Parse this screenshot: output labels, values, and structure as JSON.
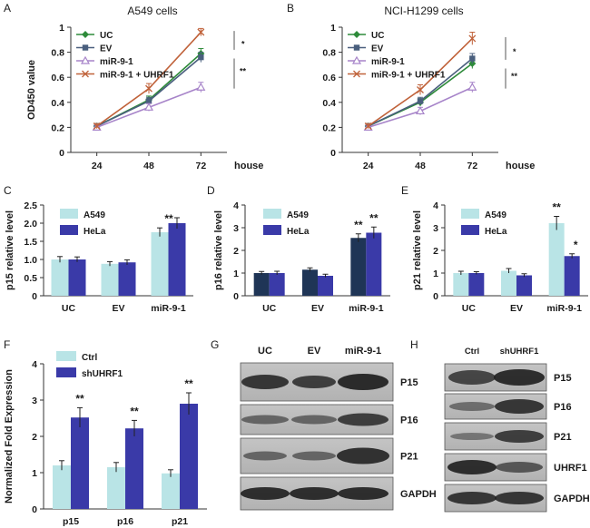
{
  "colors": {
    "uc": "#2e8b3a",
    "ev": "#4a5f7e",
    "mir": "#a784c9",
    "mir_uhrf1": "#c0623a",
    "light": "#b9e4e6",
    "dark": "#3a3aa8",
    "navy": "#1f3556"
  },
  "panels": {
    "A": {
      "letter": "A"
    },
    "B": {
      "letter": "B"
    },
    "C": {
      "letter": "C"
    },
    "D": {
      "letter": "D"
    },
    "E": {
      "letter": "E"
    },
    "F": {
      "letter": "F"
    },
    "G": {
      "letter": "G"
    },
    "H": {
      "letter": "H"
    }
  },
  "chart_data": [
    {
      "id": "A",
      "type": "line",
      "title": "A549 cells",
      "ylabel": "OD450 value",
      "xlabel": "house",
      "x": [
        "24",
        "48",
        "72"
      ],
      "ylim": [
        0,
        1
      ],
      "yticks": [
        "0",
        "0.2",
        "0.4",
        "0.6",
        "0.8",
        "1"
      ],
      "series": [
        {
          "name": "UC",
          "values": [
            0.21,
            0.42,
            0.79
          ],
          "errors": [
            0.02,
            0.03,
            0.04
          ]
        },
        {
          "name": "EV",
          "values": [
            0.21,
            0.41,
            0.76
          ],
          "errors": [
            0.02,
            0.03,
            0.04
          ]
        },
        {
          "name": "miR-9-1",
          "values": [
            0.2,
            0.36,
            0.52
          ],
          "errors": [
            0.02,
            0.03,
            0.04
          ]
        },
        {
          "name": "miR-9-1 + UHRF1",
          "values": [
            0.21,
            0.51,
            0.96
          ],
          "errors": [
            0.02,
            0.04,
            0.03
          ]
        }
      ],
      "significance": [
        "*",
        "**"
      ]
    },
    {
      "id": "B",
      "type": "line",
      "title": "NCI-H1299 cells",
      "ylabel": "",
      "xlabel": "house",
      "x": [
        "24",
        "48",
        "72"
      ],
      "ylim": [
        0,
        1
      ],
      "yticks": [
        "0",
        "0.2",
        "0.4",
        "0.6",
        "0.8",
        "1"
      ],
      "series": [
        {
          "name": "UC",
          "values": [
            0.21,
            0.4,
            0.71
          ],
          "errors": [
            0.02,
            0.03,
            0.04
          ]
        },
        {
          "name": "EV",
          "values": [
            0.21,
            0.41,
            0.75
          ],
          "errors": [
            0.02,
            0.03,
            0.04
          ]
        },
        {
          "name": "miR-9-1",
          "values": [
            0.2,
            0.33,
            0.52
          ],
          "errors": [
            0.02,
            0.03,
            0.04
          ]
        },
        {
          "name": "miR-9-1 + UHRF1",
          "values": [
            0.21,
            0.5,
            0.91
          ],
          "errors": [
            0.02,
            0.04,
            0.05
          ]
        }
      ],
      "significance": [
        "*",
        "**"
      ]
    },
    {
      "id": "C",
      "type": "bar",
      "ylabel": "p15 relative level",
      "categories": [
        "UC",
        "EV",
        "miR-9-1"
      ],
      "ylim": [
        0,
        2.5
      ],
      "yticks": [
        "0",
        "0.5",
        "1.0",
        "1.5",
        "2.0",
        "2.5"
      ],
      "series": [
        {
          "name": "A549",
          "values": [
            1.0,
            0.88,
            1.75
          ],
          "errors": [
            0.08,
            0.06,
            0.12
          ]
        },
        {
          "name": "HeLa",
          "values": [
            1.0,
            0.92,
            2.0
          ],
          "errors": [
            0.07,
            0.07,
            0.15
          ]
        }
      ],
      "significance": [
        "**"
      ]
    },
    {
      "id": "D",
      "type": "bar",
      "ylabel": "p16 relative level",
      "categories": [
        "UC",
        "EV",
        "miR-9-1"
      ],
      "ylim": [
        0,
        4
      ],
      "yticks": [
        "0",
        "1",
        "2",
        "3",
        "4"
      ],
      "series": [
        {
          "name": "A549",
          "values": [
            1.0,
            1.15,
            2.55
          ],
          "errors": [
            0.07,
            0.08,
            0.18
          ]
        },
        {
          "name": "HeLa",
          "values": [
            1.0,
            0.88,
            2.78
          ],
          "errors": [
            0.08,
            0.07,
            0.25
          ]
        }
      ],
      "significance": [
        "**",
        "**"
      ]
    },
    {
      "id": "E",
      "type": "bar",
      "ylabel": "p21 relative level",
      "categories": [
        "UC",
        "EV",
        "miR-9-1"
      ],
      "ylim": [
        0,
        4
      ],
      "yticks": [
        "0",
        "1",
        "2",
        "3",
        "4"
      ],
      "series": [
        {
          "name": "A549",
          "values": [
            1.0,
            1.1,
            3.2
          ],
          "errors": [
            0.08,
            0.1,
            0.3
          ]
        },
        {
          "name": "HeLa",
          "values": [
            1.0,
            0.9,
            1.75
          ],
          "errors": [
            0.06,
            0.07,
            0.1
          ]
        }
      ],
      "significance": [
        "**",
        "*"
      ]
    },
    {
      "id": "F",
      "type": "bar",
      "ylabel": "Normalized Fold Expression",
      "categories": [
        "p15",
        "p16",
        "p21"
      ],
      "ylim": [
        0,
        4
      ],
      "yticks": [
        "0",
        "1",
        "2",
        "3",
        "4"
      ],
      "series": [
        {
          "name": "Ctrl",
          "values": [
            1.2,
            1.15,
            0.98
          ],
          "errors": [
            0.13,
            0.13,
            0.1
          ]
        },
        {
          "name": "shUHRF1",
          "values": [
            2.52,
            2.22,
            2.9
          ],
          "errors": [
            0.27,
            0.22,
            0.3
          ]
        }
      ],
      "significance": [
        "**",
        "**",
        "**"
      ]
    }
  ],
  "blots": {
    "G": {
      "lanes": [
        "UC",
        "EV",
        "miR-9-1"
      ],
      "rows": [
        "P15",
        "P16",
        "P21",
        "GAPDH"
      ]
    },
    "H": {
      "lanes": [
        "Ctrl",
        "shUHRF1"
      ],
      "rows": [
        "P15",
        "P16",
        "P21",
        "UHRF1",
        "GAPDH"
      ]
    }
  }
}
